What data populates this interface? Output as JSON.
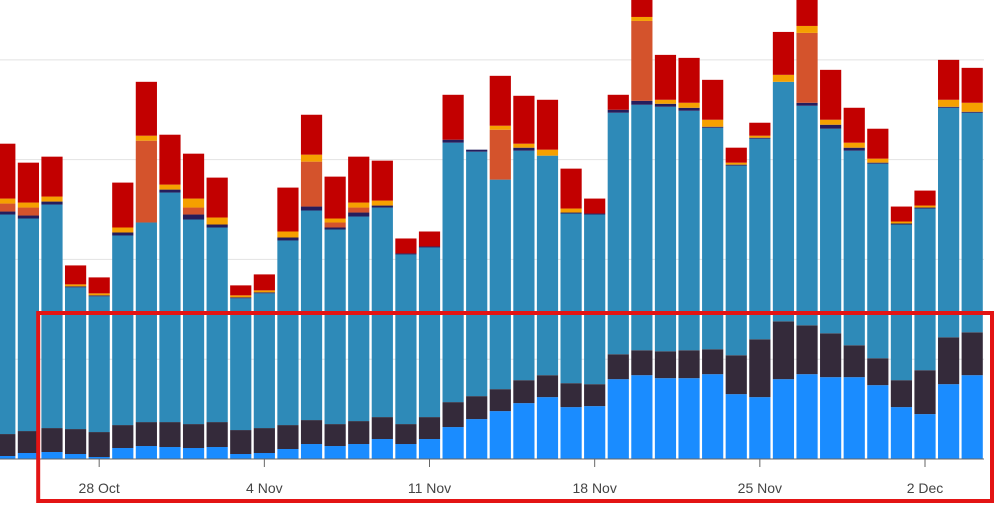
{
  "chart_data": {
    "type": "bar",
    "stacked": true,
    "grid": true,
    "ylim": [
      0,
      460
    ],
    "x_tick_labels": [
      "28 Oct",
      "4 Nov",
      "11 Nov",
      "18 Nov",
      "25 Nov",
      "2 Dec"
    ],
    "x_tick_indices": [
      4,
      11,
      18,
      25,
      32,
      39
    ],
    "highlight": {
      "start_index": 2,
      "end_index": 41,
      "color": "#e31414"
    },
    "series": [
      {
        "name": "bright-blue",
        "color": "#1a8cff",
        "values": [
          3,
          6,
          7,
          5,
          2,
          11,
          13,
          12,
          11,
          12,
          5,
          6,
          10,
          15,
          13,
          15,
          20,
          15,
          20,
          32,
          40,
          48,
          56,
          62,
          52,
          53,
          80,
          84,
          81,
          81,
          85,
          65,
          62,
          80,
          85,
          82,
          82,
          74,
          52,
          45,
          75,
          84
        ]
      },
      {
        "name": "dark-plum",
        "color": "#342a3a",
        "values": [
          22,
          22,
          24,
          25,
          25,
          23,
          24,
          25,
          24,
          25,
          24,
          25,
          24,
          24,
          22,
          23,
          22,
          20,
          22,
          25,
          23,
          22,
          23,
          22,
          24,
          22,
          25,
          25,
          27,
          28,
          25,
          39,
          58,
          58,
          49,
          44,
          32,
          27,
          27,
          44,
          47,
          43
        ]
      },
      {
        "name": "navy",
        "color": "#1b1463",
        "values": [
          0,
          0,
          0,
          0,
          0,
          0,
          0,
          0,
          0,
          0,
          0,
          0,
          0,
          0,
          0,
          0,
          0,
          0,
          0,
          0,
          0,
          0,
          0,
          0,
          0,
          0,
          0,
          0,
          0,
          0,
          0,
          0,
          0,
          0,
          0,
          0,
          0,
          0,
          0,
          0,
          0,
          0
        ]
      },
      {
        "name": "teal",
        "color": "#2e8ab8",
        "values": [
          220,
          213,
          224,
          142,
          136,
          190,
          200,
          230,
          205,
          195,
          132,
          135,
          185,
          210,
          195,
          205,
          210,
          170,
          170,
          260,
          245,
          210,
          230,
          220,
          170,
          170,
          242,
          246,
          245,
          240,
          222,
          190,
          201,
          240,
          220,
          205,
          195,
          195,
          156,
          162,
          230,
          220
        ]
      },
      {
        "name": "navy-thin",
        "color": "#251d5c",
        "values": [
          3,
          3,
          3,
          1,
          1,
          3,
          0,
          3,
          5,
          3,
          1,
          1,
          3,
          4,
          2,
          4,
          2,
          1,
          1,
          3,
          2,
          0,
          3,
          0,
          1,
          1,
          3,
          4,
          3,
          3,
          1,
          1,
          1,
          0,
          3,
          4,
          3,
          1,
          1,
          1,
          1,
          1
        ]
      },
      {
        "name": "orange-red",
        "color": "#d4532c",
        "values": [
          8,
          8,
          0,
          0,
          0,
          0,
          82,
          0,
          7,
          0,
          0,
          0,
          0,
          45,
          5,
          5,
          0,
          0,
          0,
          0,
          0,
          50,
          0,
          0,
          0,
          0,
          0,
          80,
          0,
          0,
          0,
          0,
          0,
          0,
          70,
          0,
          0,
          0,
          0,
          0,
          0,
          0
        ]
      },
      {
        "name": "amber",
        "color": "#f5a000",
        "values": [
          5,
          5,
          5,
          2,
          2,
          5,
          5,
          5,
          9,
          7,
          2,
          2,
          6,
          7,
          4,
          5,
          5,
          0,
          0,
          0,
          0,
          4,
          4,
          6,
          4,
          0,
          0,
          4,
          4,
          5,
          7,
          2,
          2,
          7,
          7,
          5,
          5,
          4,
          2,
          2,
          7,
          9
        ]
      },
      {
        "name": "crimson",
        "color": "#c20000",
        "values": [
          55,
          40,
          40,
          19,
          16,
          45,
          54,
          50,
          45,
          40,
          10,
          16,
          44,
          40,
          42,
          46,
          40,
          15,
          15,
          45,
          0,
          50,
          48,
          50,
          40,
          15,
          15,
          40,
          45,
          45,
          40,
          15,
          13,
          43,
          47,
          50,
          35,
          30,
          15,
          15,
          40,
          35
        ]
      }
    ]
  }
}
